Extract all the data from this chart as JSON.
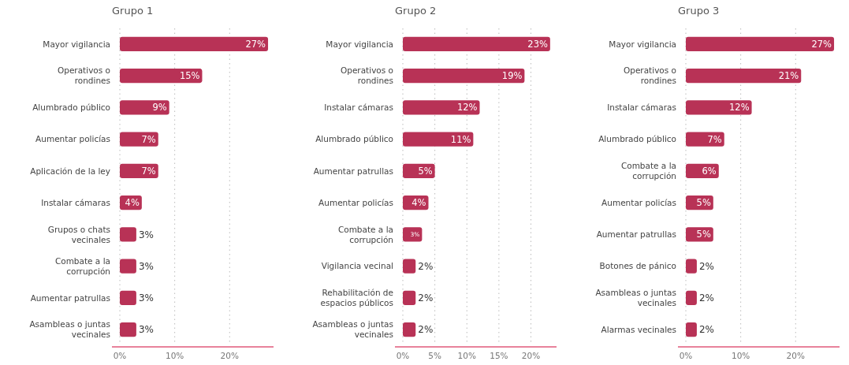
{
  "chart_data": [
    {
      "type": "bar",
      "orientation": "horizontal",
      "title": "Grupo 1",
      "categories": [
        "Mayor vigilancia",
        "Operativos o rondines",
        "Alumbrado público",
        "Aumentar policías",
        "Aplicación de la ley",
        "Instalar cámaras",
        "Grupos o chats vecinales",
        "Combate a la corrupción",
        "Aumentar patrullas",
        "Asambleas o juntas vecinales"
      ],
      "values": [
        27,
        15,
        9,
        7,
        7,
        4,
        3,
        3,
        3,
        3
      ],
      "color": "#b83256",
      "xlim": [
        0,
        28
      ],
      "xticks": [
        {
          "value": 0,
          "label": "0%"
        },
        {
          "value": 10,
          "label": "10%"
        },
        {
          "value": 20,
          "label": "20%"
        }
      ],
      "value_labels": [
        "27%",
        "15%",
        "9%",
        "7%",
        "7%",
        "4%",
        "3%",
        "3%",
        "3%",
        "3%"
      ],
      "grid": "x"
    },
    {
      "type": "bar",
      "orientation": "horizontal",
      "title": "Grupo 2",
      "categories": [
        "Mayor vigilancia",
        "Operativos o rondines",
        "Instalar cámaras",
        "Alumbrado público",
        "Aumentar patrullas",
        "Aumentar policías",
        "Combate a la corrupción",
        "Vigilancia vecinal",
        "Rehabilitación de espacios públicos",
        "Asambleas o juntas vecinales"
      ],
      "values": [
        23,
        19,
        12,
        11,
        5,
        4,
        3,
        2,
        2,
        2
      ],
      "color": "#b83256",
      "xlim": [
        0,
        24
      ],
      "xticks": [
        {
          "value": 0,
          "label": "0%"
        },
        {
          "value": 5,
          "label": "5%"
        },
        {
          "value": 10,
          "label": "10%"
        },
        {
          "value": 15,
          "label": "15%"
        },
        {
          "value": 20,
          "label": "20%"
        }
      ],
      "value_labels": [
        "23%",
        "19%",
        "12%",
        "11%",
        "5%",
        "4%",
        "3%",
        "2%",
        "2%",
        "2%"
      ],
      "grid": "x"
    },
    {
      "type": "bar",
      "orientation": "horizontal",
      "title": "Grupo 3",
      "categories": [
        "Mayor vigilancia",
        "Operativos o rondines",
        "Instalar cámaras",
        "Alumbrado público",
        "Combate a la corrupción",
        "Aumentar policías",
        "Aumentar patrullas",
        "Botones de pánico",
        "Asambleas o juntas vecinales",
        "Alarmas vecinales"
      ],
      "values": [
        27,
        21,
        12,
        7,
        6,
        5,
        5,
        2,
        2,
        2
      ],
      "color": "#b83256",
      "xlim": [
        0,
        28
      ],
      "xticks": [
        {
          "value": 0,
          "label": "0%"
        },
        {
          "value": 10,
          "label": "10%"
        },
        {
          "value": 20,
          "label": "20%"
        }
      ],
      "value_labels": [
        "27%",
        "21%",
        "12%",
        "7%",
        "6%",
        "5%",
        "5%",
        "2%",
        "2%",
        "2%"
      ],
      "grid": "x"
    }
  ]
}
